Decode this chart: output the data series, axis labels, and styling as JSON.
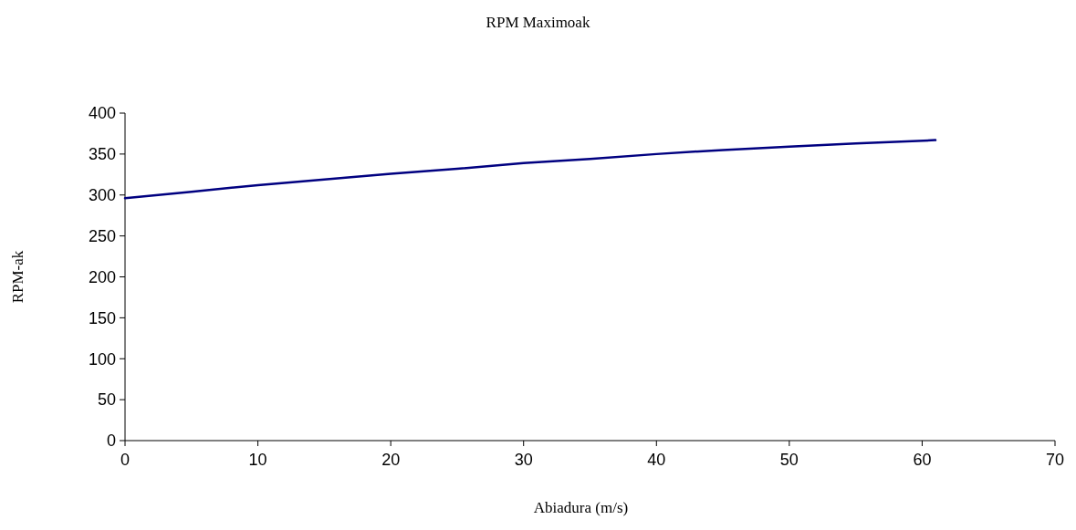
{
  "chart_data": {
    "type": "line",
    "title": "RPM Maximoak",
    "xlabel": "Abiadura (m/s)",
    "ylabel": "RPM-ak",
    "x": [
      0,
      5,
      10,
      15,
      20,
      25,
      30,
      35,
      40,
      45,
      50,
      55,
      61
    ],
    "series": [
      {
        "color": "#000080",
        "values": [
          296,
          304,
          312,
          319,
          326,
          332,
          339,
          344,
          350,
          355,
          359,
          363,
          367
        ]
      }
    ],
    "xlim": [
      0,
      70
    ],
    "xticks": [
      0,
      10,
      20,
      30,
      40,
      50,
      60,
      70
    ],
    "ylim": [
      0,
      400
    ],
    "yticks": [
      0,
      50,
      100,
      150,
      200,
      250,
      300,
      350,
      400
    ],
    "marker": "none",
    "line_style": "solid"
  }
}
